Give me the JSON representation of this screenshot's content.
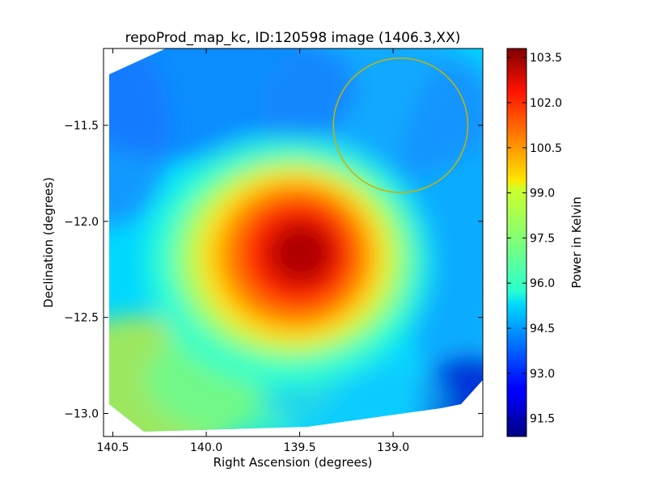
{
  "chart_data": {
    "type": "heatmap",
    "title": "repoProd_map_kc, ID:120598 image (1406.3,XX)",
    "xlabel": "Right Ascension (degrees)",
    "ylabel": "Declination (degrees)",
    "xlim": [
      140.55,
      138.52
    ],
    "ylim": [
      -13.12,
      -11.1
    ],
    "x_ticks": [
      {
        "value": 140.5,
        "label": "140.5"
      },
      {
        "value": 140.0,
        "label": "140.0"
      },
      {
        "value": 139.5,
        "label": "139.5"
      },
      {
        "value": 139.0,
        "label": "139.0"
      }
    ],
    "y_ticks": [
      {
        "value": -11.5,
        "label": "−11.5"
      },
      {
        "value": -12.0,
        "label": "−12.0"
      },
      {
        "value": -12.5,
        "label": "−12.5"
      },
      {
        "value": -13.0,
        "label": "−13.0"
      }
    ],
    "colorbar": {
      "label": "Power in Kelvin",
      "colormap": "jet",
      "range": [
        90.9,
        103.8
      ],
      "ticks": [
        {
          "value": 91.5,
          "label": "91.5"
        },
        {
          "value": 93.0,
          "label": "93.0"
        },
        {
          "value": 94.5,
          "label": "94.5"
        },
        {
          "value": 96.0,
          "label": "96.0"
        },
        {
          "value": 97.5,
          "label": "97.5"
        },
        {
          "value": 99.0,
          "label": "99.0"
        },
        {
          "value": 100.5,
          "label": "100.5"
        },
        {
          "value": 102.0,
          "label": "102.0"
        },
        {
          "value": 103.5,
          "label": "103.5"
        }
      ]
    },
    "peak": {
      "ra": 139.5,
      "dec": -12.15,
      "value": 103.7
    },
    "beam_circle": {
      "ra": 138.96,
      "dec": -11.5,
      "radius_deg": 0.36,
      "color": "#c8b400"
    },
    "grid": false,
    "legend": "none"
  }
}
